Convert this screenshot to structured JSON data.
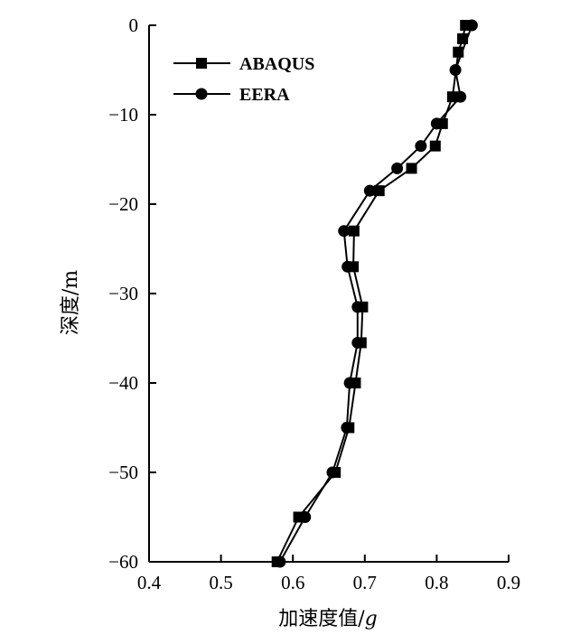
{
  "chart_data": {
    "type": "line",
    "xlabel_main": "加速度值/",
    "xlabel_unit": "g",
    "ylabel": "深度/m",
    "xlim": [
      0.4,
      0.9
    ],
    "ylim": [
      -60,
      0
    ],
    "x_ticks": [
      "0.4",
      "0.5",
      "0.6",
      "0.7",
      "0.8",
      "0.9"
    ],
    "y_ticks": [
      "0",
      "−10",
      "−20",
      "−30",
      "−40",
      "−50",
      "−60"
    ],
    "legend_position": "top-left",
    "grid": false,
    "series": [
      {
        "name": "ABAQUS",
        "marker": "square",
        "color": "#000000",
        "points": [
          {
            "x": 0.84,
            "y": 0
          },
          {
            "x": 0.836,
            "y": -1.5
          },
          {
            "x": 0.83,
            "y": -3
          },
          {
            "x": 0.822,
            "y": -8
          },
          {
            "x": 0.808,
            "y": -11
          },
          {
            "x": 0.798,
            "y": -13.5
          },
          {
            "x": 0.765,
            "y": -16
          },
          {
            "x": 0.72,
            "y": -18.5
          },
          {
            "x": 0.685,
            "y": -23
          },
          {
            "x": 0.684,
            "y": -27
          },
          {
            "x": 0.697,
            "y": -31.5
          },
          {
            "x": 0.695,
            "y": -35.5
          },
          {
            "x": 0.687,
            "y": -40
          },
          {
            "x": 0.678,
            "y": -45
          },
          {
            "x": 0.659,
            "y": -50
          },
          {
            "x": 0.608,
            "y": -55
          },
          {
            "x": 0.578,
            "y": -60
          }
        ]
      },
      {
        "name": "EERA",
        "marker": "circle",
        "color": "#000000",
        "points": [
          {
            "x": 0.849,
            "y": 0
          },
          {
            "x": 0.826,
            "y": -5
          },
          {
            "x": 0.833,
            "y": -8
          },
          {
            "x": 0.8,
            "y": -11
          },
          {
            "x": 0.778,
            "y": -13.5
          },
          {
            "x": 0.745,
            "y": -16
          },
          {
            "x": 0.707,
            "y": -18.5
          },
          {
            "x": 0.671,
            "y": -23
          },
          {
            "x": 0.676,
            "y": -27
          },
          {
            "x": 0.69,
            "y": -31.5
          },
          {
            "x": 0.69,
            "y": -35.5
          },
          {
            "x": 0.679,
            "y": -40
          },
          {
            "x": 0.675,
            "y": -45
          },
          {
            "x": 0.655,
            "y": -50
          },
          {
            "x": 0.617,
            "y": -55
          },
          {
            "x": 0.582,
            "y": -60
          }
        ]
      }
    ]
  }
}
